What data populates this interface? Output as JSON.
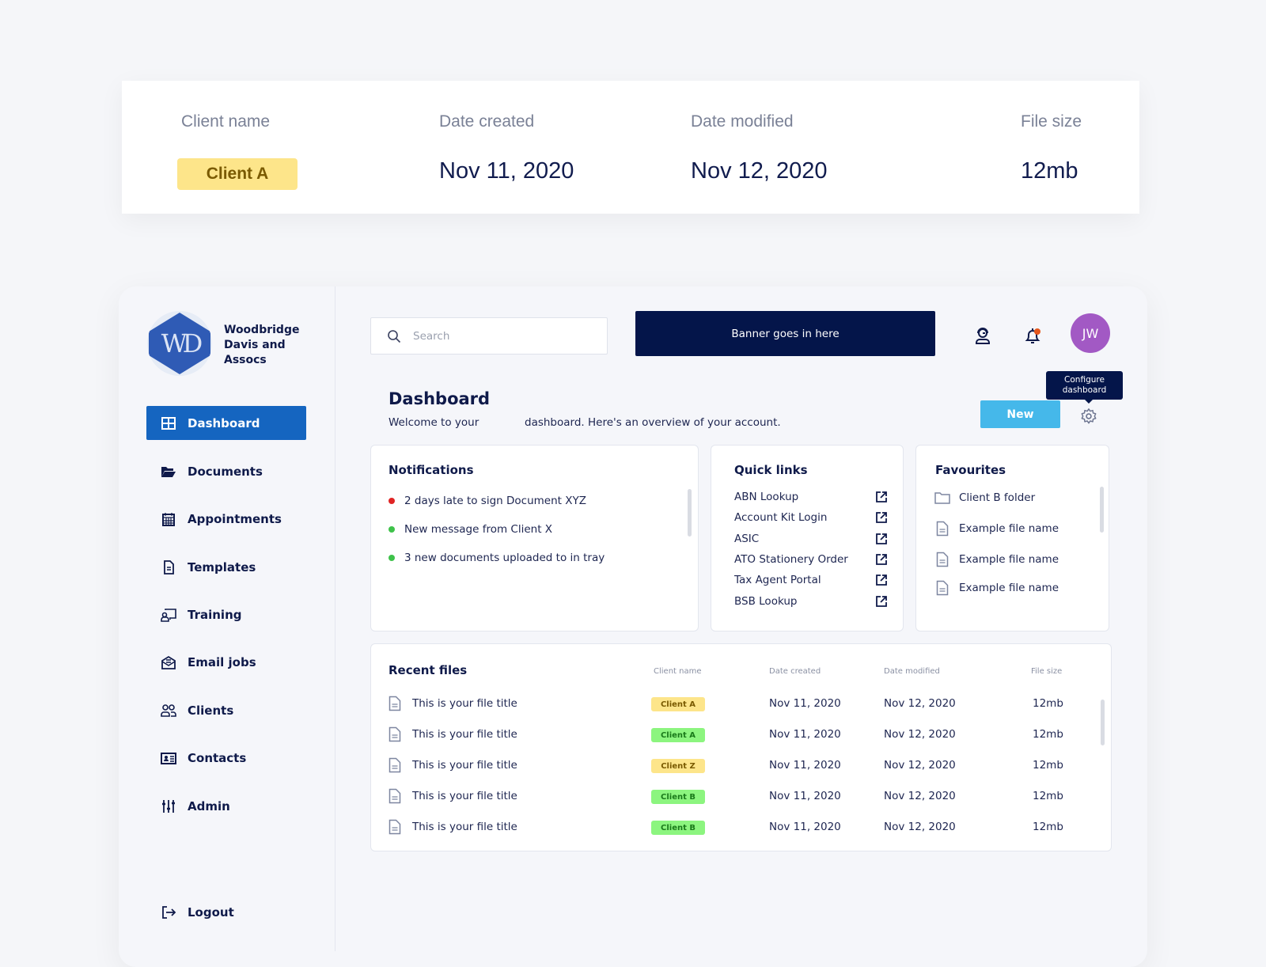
{
  "top_card": {
    "headers": [
      "Client name",
      "Date created",
      "Date modified",
      "File size"
    ],
    "client": "Client A",
    "date_created": "Nov 11, 2020",
    "date_modified": "Nov 12, 2020",
    "file_size": "12mb"
  },
  "brand": {
    "logo_letters": "WD",
    "name_lines": [
      "Woodbridge",
      "Davis and",
      "Assocs"
    ]
  },
  "sidebar": {
    "items": [
      {
        "label": "Dashboard",
        "icon": "grid-icon"
      },
      {
        "label": "Documents",
        "icon": "folder-open-icon"
      },
      {
        "label": "Appointments",
        "icon": "calendar-icon"
      },
      {
        "label": "Templates",
        "icon": "document-icon"
      },
      {
        "label": "Training",
        "icon": "presentation-icon"
      },
      {
        "label": "Email jobs",
        "icon": "email-icon"
      },
      {
        "label": "Clients",
        "icon": "users-icon"
      },
      {
        "label": "Contacts",
        "icon": "contact-card-icon"
      },
      {
        "label": "Admin",
        "icon": "sliders-icon"
      }
    ],
    "logout": "Logout"
  },
  "header": {
    "search_placeholder": "Search",
    "banner": "Banner goes in here",
    "avatar_initials": "JW"
  },
  "dashboard": {
    "title": "Dashboard",
    "welcome_a": "Welcome to your",
    "welcome_b": "dashboard.  Here's an overview of your account.",
    "new_button": "New",
    "tooltip": "Configure dashboard"
  },
  "notifications": {
    "title": "Notifications",
    "items": [
      {
        "text": "2 days late to sign Document XYZ",
        "color": "#e02424"
      },
      {
        "text": "New message from Client X",
        "color": "#3ec24a"
      },
      {
        "text": "3 new documents uploaded to in tray",
        "color": "#3ec24a"
      }
    ]
  },
  "quick_links": {
    "title": "Quick links",
    "items": [
      "ABN Lookup",
      "Account Kit Login",
      "ASIC",
      "ATO Stationery Order",
      "Tax Agent Portal",
      "BSB Lookup"
    ]
  },
  "favourites": {
    "title": "Favourites",
    "items": [
      "Client B folder",
      "Example file name",
      "Example file name",
      "Example file name"
    ]
  },
  "recent_files": {
    "title": "Recent files",
    "headers": [
      "Client name",
      "Date created",
      "Date modified",
      "File size"
    ],
    "rows": [
      {
        "title": "This is your file title",
        "client": "Client A",
        "chip": "yellow",
        "created": "Nov 11, 2020",
        "modified": "Nov 12, 2020",
        "size": "12mb"
      },
      {
        "title": "This is your file title",
        "client": "Client A",
        "chip": "green",
        "created": "Nov 11, 2020",
        "modified": "Nov 12, 2020",
        "size": "12mb"
      },
      {
        "title": "This is your file title",
        "client": "Client Z",
        "chip": "yellow",
        "created": "Nov 11, 2020",
        "modified": "Nov 12, 2020",
        "size": "12mb"
      },
      {
        "title": "This is your file title",
        "client": "Client B",
        "chip": "green",
        "created": "Nov 11, 2020",
        "modified": "Nov 12, 2020",
        "size": "12mb"
      },
      {
        "title": "This is your file title",
        "client": "Client B",
        "chip": "green",
        "created": "Nov 11, 2020",
        "modified": "Nov 12, 2020",
        "size": "12mb"
      }
    ]
  },
  "colors": {
    "primary": "#1565c0",
    "navy": "#04154a",
    "new_button": "#45b8ea",
    "avatar": "#a259c4",
    "chip_yellow": "#fde58a",
    "chip_green": "#8cf57f"
  }
}
